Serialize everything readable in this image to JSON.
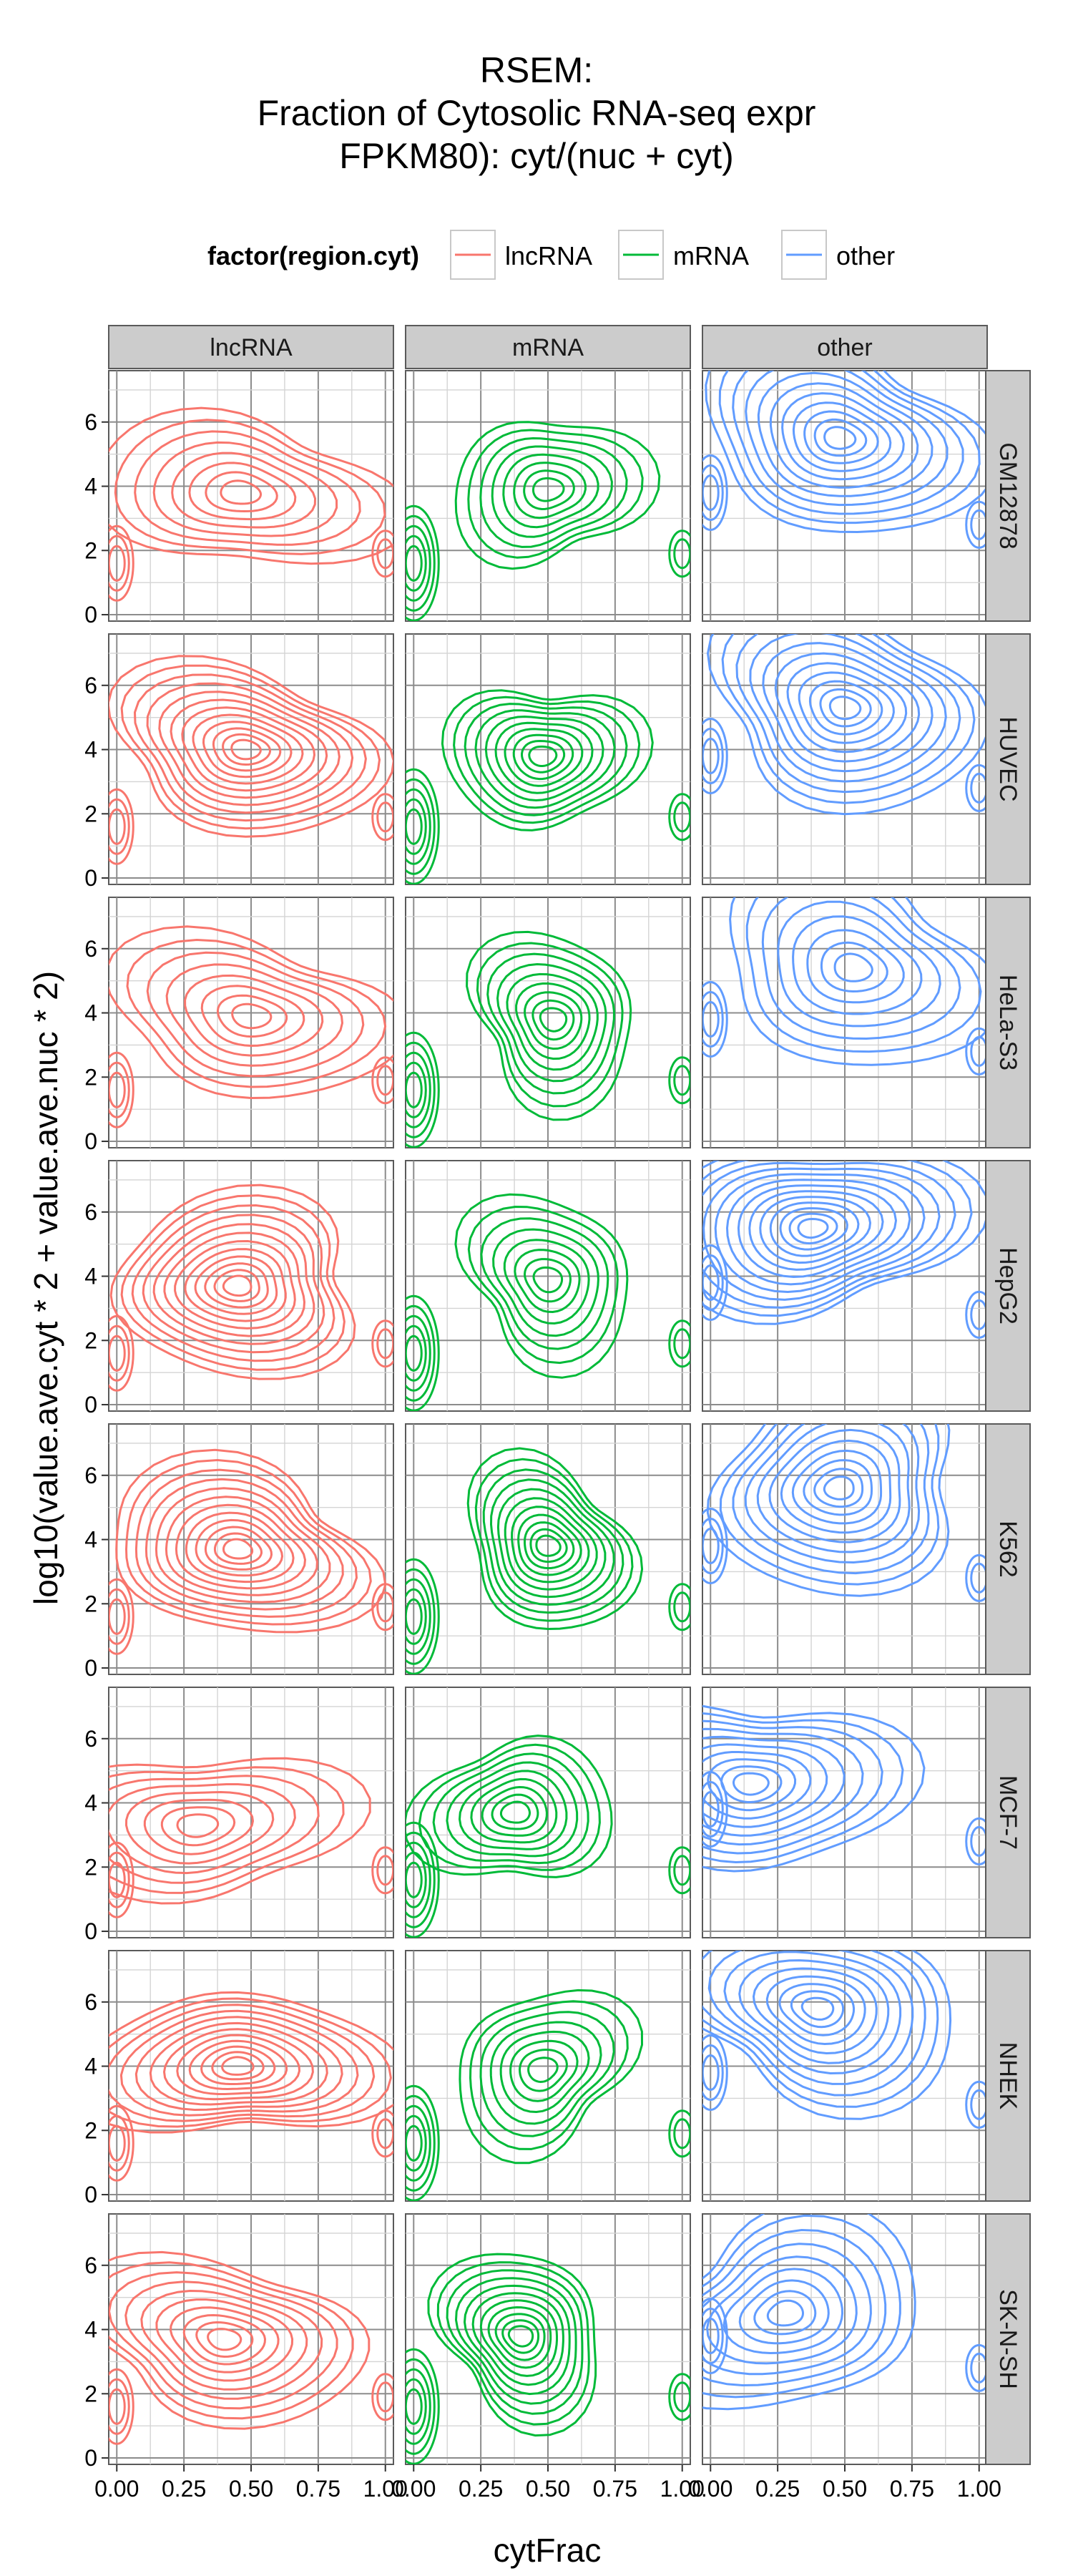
{
  "chart_data": {
    "type": "contour",
    "title_lines": [
      "RSEM:",
      "Fraction of Cytosolic RNA-seq expr",
      "FPKM80): cyt/(nuc + cyt)"
    ],
    "xlabel": "cytFrac",
    "ylabel": "log10(value.ave.cyt * 2 + value.ave.nuc * 2)",
    "xlim": [
      -0.03,
      1.03
    ],
    "ylim": [
      -0.2,
      7.6
    ],
    "x_ticks": [
      0,
      0.25,
      0.5,
      0.75,
      1
    ],
    "x_tick_labels": [
      "0.00",
      "0.25",
      "0.50",
      "0.75",
      "1.00"
    ],
    "y_ticks": [
      0,
      2,
      4,
      6
    ],
    "y_tick_labels": [
      "0",
      "2",
      "4",
      "6"
    ],
    "grid": true,
    "legend": {
      "title": "factor(region.cyt)",
      "position": "top",
      "entries": [
        "lncRNA",
        "mRNA",
        "other"
      ]
    },
    "colors": {
      "lncRNA": "#f8766d",
      "mRNA": "#00ba38",
      "other": "#619cff"
    },
    "columns": [
      "lncRNA",
      "mRNA",
      "other"
    ],
    "rows": [
      "GM12878",
      "HUVEC",
      "HeLa-S3",
      "HepG2",
      "K562",
      "MCF-7",
      "NHEK",
      "SK-N-SH"
    ],
    "panels": {
      "lncRNA": {
        "GM12878": {
          "peak_x": 0.46,
          "peak_y": 3.8,
          "levels": 8
        },
        "HUVEC": {
          "peak_x": 0.48,
          "peak_y": 4.0,
          "levels": 12
        },
        "HeLa-S3": {
          "peak_x": 0.5,
          "peak_y": 3.9,
          "levels": 8
        },
        "HepG2": {
          "peak_x": 0.45,
          "peak_y": 3.7,
          "levels": 12
        },
        "K562": {
          "peak_x": 0.45,
          "peak_y": 3.7,
          "levels": 12
        },
        "MCF-7": {
          "peak_x": 0.3,
          "peak_y": 3.3,
          "levels": 8
        },
        "NHEK": {
          "peak_x": 0.45,
          "peak_y": 4.0,
          "levels": 12
        },
        "SK-N-SH": {
          "peak_x": 0.4,
          "peak_y": 3.7,
          "levels": 10
        }
      },
      "mRNA": {
        "GM12878": {
          "peak_x": 0.5,
          "peak_y": 3.9,
          "levels": 8
        },
        "HUVEC": {
          "peak_x": 0.48,
          "peak_y": 3.8,
          "levels": 10
        },
        "HeLa-S3": {
          "peak_x": 0.52,
          "peak_y": 3.8,
          "levels": 9
        },
        "HepG2": {
          "peak_x": 0.5,
          "peak_y": 3.9,
          "levels": 8
        },
        "K562": {
          "peak_x": 0.5,
          "peak_y": 3.8,
          "levels": 11
        },
        "MCF-7": {
          "peak_x": 0.38,
          "peak_y": 3.7,
          "levels": 9
        },
        "NHEK": {
          "peak_x": 0.48,
          "peak_y": 3.9,
          "levels": 8
        },
        "SK-N-SH": {
          "peak_x": 0.4,
          "peak_y": 3.8,
          "levels": 11
        }
      },
      "other": {
        "GM12878": {
          "peak_x": 0.48,
          "peak_y": 5.5,
          "levels": 11
        },
        "HUVEC": {
          "peak_x": 0.5,
          "peak_y": 5.3,
          "levels": 11
        },
        "HeLa-S3": {
          "peak_x": 0.53,
          "peak_y": 5.4,
          "levels": 8
        },
        "HepG2": {
          "peak_x": 0.38,
          "peak_y": 5.5,
          "levels": 13
        },
        "K562": {
          "peak_x": 0.48,
          "peak_y": 5.6,
          "levels": 11
        },
        "MCF-7": {
          "peak_x": 0.15,
          "peak_y": 4.6,
          "levels": 10
        },
        "NHEK": {
          "peak_x": 0.4,
          "peak_y": 5.8,
          "levels": 11
        },
        "SK-N-SH": {
          "peak_x": 0.28,
          "peak_y": 4.5,
          "levels": 9
        }
      }
    }
  }
}
